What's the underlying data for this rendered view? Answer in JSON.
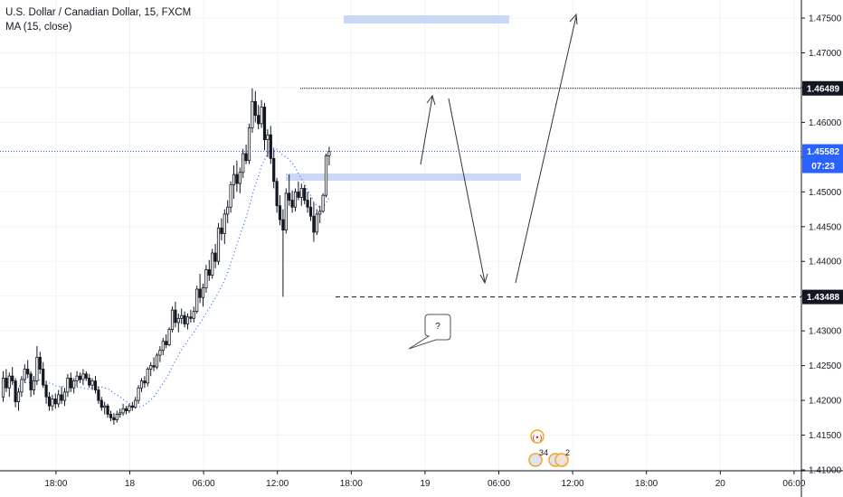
{
  "legend": {
    "title": "U.S. Dollar / Canadian Dollar, 15, FXCM",
    "indicator": "MA (15, close)"
  },
  "price_badges": {
    "high": "1.46489",
    "current": "1.45582",
    "countdown": "07:23",
    "low": "1.43488"
  },
  "annotation": {
    "callout": "?"
  },
  "events": {
    "count_a": "34",
    "count_b": "2"
  },
  "colors": {
    "up": "#131722",
    "down": "#131722",
    "ma": "#2962ff",
    "zone": "#c9d8f5",
    "current_line": "#2962ff",
    "badge_dark": "#131722",
    "badge_blue": "#2962ff",
    "event": "#f5a623"
  },
  "chart_data": {
    "type": "candlestick",
    "title": "U.S. Dollar / Canadian Dollar, 15, FXCM",
    "interval_minutes": 15,
    "ylim": [
      1.408,
      1.4795
    ],
    "y_ticks": [
      "1.47500",
      "1.47000",
      "1.46500",
      "1.46000",
      "1.45500",
      "1.45000",
      "1.44500",
      "1.44000",
      "1.43500",
      "1.43000",
      "1.42500",
      "1.42000",
      "1.41500",
      "1.41000"
    ],
    "y_tick_values": [
      1.475,
      1.47,
      1.465,
      1.46,
      1.455,
      1.45,
      1.445,
      1.44,
      1.435,
      1.43,
      1.425,
      1.42,
      1.415,
      1.41
    ],
    "x_ticks": [
      "18:00",
      "18",
      "06:00",
      "12:00",
      "18:00",
      "19",
      "06:00",
      "12:00",
      "18:00",
      "20",
      "06:00"
    ],
    "x_tick_index": [
      16,
      40,
      64,
      88,
      112,
      136,
      160,
      184,
      208,
      232,
      256
    ],
    "ma_label": "MA (15, close)",
    "ma_period": 15,
    "candles": [
      [
        1.4205,
        1.4242,
        1.4198,
        1.4232
      ],
      [
        1.4232,
        1.4245,
        1.4212,
        1.4218
      ],
      [
        1.4218,
        1.424,
        1.4205,
        1.4235
      ],
      [
        1.4235,
        1.4248,
        1.4222,
        1.4228
      ],
      [
        1.4228,
        1.4232,
        1.419,
        1.4198
      ],
      [
        1.4198,
        1.4218,
        1.4185,
        1.4212
      ],
      [
        1.4212,
        1.4235,
        1.4205,
        1.423
      ],
      [
        1.423,
        1.4252,
        1.4225,
        1.4245
      ],
      [
        1.4245,
        1.4258,
        1.4232,
        1.4238
      ],
      [
        1.4238,
        1.4242,
        1.4205,
        1.4215
      ],
      [
        1.4215,
        1.4235,
        1.4208,
        1.4228
      ],
      [
        1.4228,
        1.4278,
        1.4222,
        1.4262
      ],
      [
        1.4262,
        1.427,
        1.4238,
        1.4245
      ],
      [
        1.4245,
        1.4255,
        1.4218,
        1.4222
      ],
      [
        1.4222,
        1.4228,
        1.4195,
        1.4205
      ],
      [
        1.4205,
        1.4212,
        1.4185,
        1.4192
      ],
      [
        1.4192,
        1.4208,
        1.4185,
        1.4202
      ],
      [
        1.4202,
        1.421,
        1.4188,
        1.4195
      ],
      [
        1.4195,
        1.4215,
        1.419,
        1.4208
      ],
      [
        1.4208,
        1.422,
        1.4195,
        1.42
      ],
      [
        1.42,
        1.4218,
        1.4192,
        1.4212
      ],
      [
        1.4212,
        1.4238,
        1.4205,
        1.4232
      ],
      [
        1.4232,
        1.424,
        1.4212,
        1.4218
      ],
      [
        1.4218,
        1.4232,
        1.421,
        1.4228
      ],
      [
        1.4228,
        1.4242,
        1.422,
        1.4235
      ],
      [
        1.4235,
        1.424,
        1.4225,
        1.423
      ],
      [
        1.423,
        1.4245,
        1.4222,
        1.4238
      ],
      [
        1.4238,
        1.4242,
        1.4228,
        1.4232
      ],
      [
        1.4232,
        1.4238,
        1.4218,
        1.4222
      ],
      [
        1.4222,
        1.4232,
        1.4215,
        1.4228
      ],
      [
        1.4228,
        1.4235,
        1.421,
        1.4215
      ],
      [
        1.4215,
        1.422,
        1.4195,
        1.42
      ],
      [
        1.42,
        1.4205,
        1.4185,
        1.419
      ],
      [
        1.419,
        1.4198,
        1.418,
        1.4192
      ],
      [
        1.4192,
        1.4195,
        1.4175,
        1.418
      ],
      [
        1.418,
        1.4185,
        1.417,
        1.4175
      ],
      [
        1.4175,
        1.4182,
        1.4165,
        1.4172
      ],
      [
        1.4172,
        1.4185,
        1.4168,
        1.418
      ],
      [
        1.418,
        1.4188,
        1.4175,
        1.4182
      ],
      [
        1.4182,
        1.4195,
        1.4178,
        1.4188
      ],
      [
        1.4188,
        1.4192,
        1.418,
        1.4185
      ],
      [
        1.4185,
        1.4195,
        1.4182,
        1.4192
      ],
      [
        1.4192,
        1.4198,
        1.4185,
        1.419
      ],
      [
        1.419,
        1.4205,
        1.4188,
        1.42
      ],
      [
        1.42,
        1.4222,
        1.4195,
        1.4218
      ],
      [
        1.4218,
        1.4232,
        1.4212,
        1.4228
      ],
      [
        1.4228,
        1.4235,
        1.4218,
        1.4225
      ],
      [
        1.4225,
        1.4248,
        1.422,
        1.4245
      ],
      [
        1.4245,
        1.4255,
        1.4235,
        1.425
      ],
      [
        1.425,
        1.4262,
        1.4242,
        1.4248
      ],
      [
        1.4248,
        1.4268,
        1.4245,
        1.4265
      ],
      [
        1.4265,
        1.4278,
        1.4255,
        1.4272
      ],
      [
        1.4272,
        1.429,
        1.4265,
        1.4285
      ],
      [
        1.4285,
        1.4295,
        1.4275,
        1.428
      ],
      [
        1.428,
        1.4305,
        1.4278,
        1.4302
      ],
      [
        1.4302,
        1.4335,
        1.4298,
        1.433
      ],
      [
        1.433,
        1.4342,
        1.4305,
        1.4312
      ],
      [
        1.4312,
        1.4325,
        1.4298,
        1.4318
      ],
      [
        1.4318,
        1.4332,
        1.431,
        1.4322
      ],
      [
        1.4322,
        1.4328,
        1.4305,
        1.431
      ],
      [
        1.431,
        1.4325,
        1.4302,
        1.432
      ],
      [
        1.432,
        1.433,
        1.4312,
        1.4318
      ],
      [
        1.4318,
        1.4335,
        1.4312,
        1.4328
      ],
      [
        1.4328,
        1.4365,
        1.4325,
        1.436
      ],
      [
        1.436,
        1.4382,
        1.434,
        1.4348
      ],
      [
        1.4348,
        1.4368,
        1.4335,
        1.4362
      ],
      [
        1.4362,
        1.4395,
        1.4355,
        1.4388
      ],
      [
        1.4388,
        1.4402,
        1.4372,
        1.438
      ],
      [
        1.438,
        1.4418,
        1.4375,
        1.4412
      ],
      [
        1.4412,
        1.4425,
        1.439,
        1.44
      ],
      [
        1.44,
        1.4455,
        1.4395,
        1.4448
      ],
      [
        1.4448,
        1.4462,
        1.443,
        1.444
      ],
      [
        1.444,
        1.4475,
        1.4425,
        1.4468
      ],
      [
        1.4468,
        1.4488,
        1.4455,
        1.4478
      ],
      [
        1.4478,
        1.4515,
        1.447,
        1.451
      ],
      [
        1.451,
        1.4538,
        1.449,
        1.4525
      ],
      [
        1.4525,
        1.4545,
        1.45,
        1.4512
      ],
      [
        1.4512,
        1.4535,
        1.4498,
        1.4528
      ],
      [
        1.4528,
        1.4562,
        1.452,
        1.4555
      ],
      [
        1.4555,
        1.4568,
        1.454,
        1.4545
      ],
      [
        1.4545,
        1.4598,
        1.454,
        1.4592
      ],
      [
        1.4592,
        1.4649,
        1.4585,
        1.463
      ],
      [
        1.463,
        1.4645,
        1.46,
        1.461
      ],
      [
        1.461,
        1.4625,
        1.459,
        1.4598
      ],
      [
        1.4598,
        1.4632,
        1.4592,
        1.4622
      ],
      [
        1.4622,
        1.4628,
        1.456,
        1.4575
      ],
      [
        1.4575,
        1.459,
        1.455,
        1.4582
      ],
      [
        1.4582,
        1.4595,
        1.454,
        1.4548
      ],
      [
        1.4548,
        1.4562,
        1.4505,
        1.4515
      ],
      [
        1.4515,
        1.452,
        1.447,
        1.448
      ],
      [
        1.448,
        1.4495,
        1.4452,
        1.446
      ],
      [
        1.446,
        1.4475,
        1.4349,
        1.4445
      ],
      [
        1.4445,
        1.4505,
        1.444,
        1.4498
      ],
      [
        1.4498,
        1.4525,
        1.448,
        1.4488
      ],
      [
        1.4488,
        1.4502,
        1.447,
        1.4478
      ],
      [
        1.4478,
        1.4505,
        1.4472,
        1.45
      ],
      [
        1.45,
        1.4515,
        1.4488,
        1.4492
      ],
      [
        1.4492,
        1.4512,
        1.448,
        1.4505
      ],
      [
        1.4505,
        1.451,
        1.4482,
        1.4488
      ],
      [
        1.4488,
        1.45,
        1.447,
        1.4478
      ],
      [
        1.4478,
        1.4492,
        1.4458,
        1.4465
      ],
      [
        1.4465,
        1.4485,
        1.4428,
        1.4442
      ],
      [
        1.4442,
        1.4475,
        1.4438,
        1.4468
      ],
      [
        1.4468,
        1.448,
        1.4455,
        1.4472
      ],
      [
        1.4472,
        1.4498,
        1.447,
        1.4495
      ],
      [
        1.4495,
        1.4555,
        1.4492,
        1.4552
      ],
      [
        1.4552,
        1.4565,
        1.4538,
        1.4558
      ]
    ]
  }
}
